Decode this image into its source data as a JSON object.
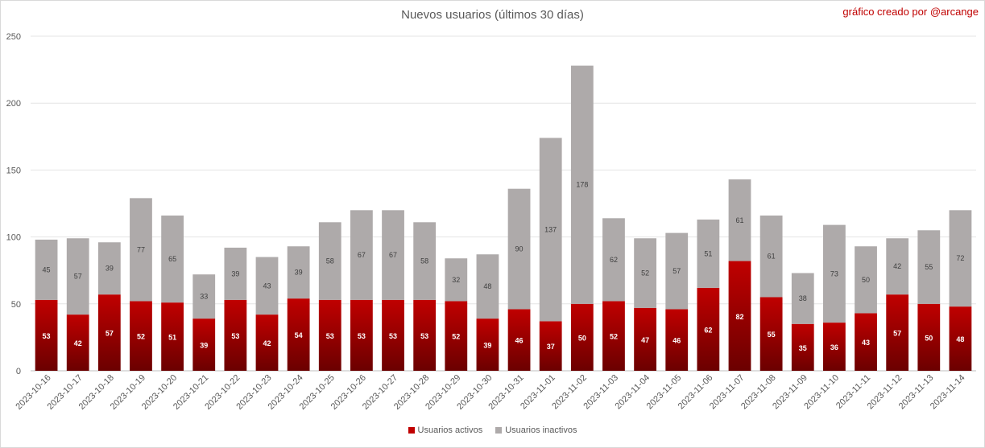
{
  "credit": "gráfico creado por @arcange",
  "colors": {
    "active": "#c00000",
    "active_dark": "#6b0000",
    "inactive": "#aeaaaa",
    "grid": "#e4e4e4",
    "axis_text": "#595959"
  },
  "chart_data": {
    "type": "bar",
    "stacked": true,
    "title": "Nuevos usuarios (últimos 30 días)",
    "xlabel": "",
    "ylabel": "",
    "ylim": [
      0,
      250
    ],
    "yticks": [
      0,
      50,
      100,
      150,
      200,
      250
    ],
    "grid": true,
    "legend_position": "bottom",
    "categories": [
      "2023-10-16",
      "2023-10-17",
      "2023-10-18",
      "2023-10-19",
      "2023-10-20",
      "2023-10-21",
      "2023-10-22",
      "2023-10-23",
      "2023-10-24",
      "2023-10-25",
      "2023-10-26",
      "2023-10-27",
      "2023-10-28",
      "2023-10-29",
      "2023-10-30",
      "2023-10-31",
      "2023-11-01",
      "2023-11-02",
      "2023-11-03",
      "2023-11-04",
      "2023-11-05",
      "2023-11-06",
      "2023-11-07",
      "2023-11-08",
      "2023-11-09",
      "2023-11-10",
      "2023-11-11",
      "2023-11-12",
      "2023-11-13",
      "2023-11-14"
    ],
    "series": [
      {
        "name": "Usuarios activos",
        "values": [
          53,
          42,
          57,
          52,
          51,
          39,
          53,
          42,
          54,
          53,
          53,
          53,
          53,
          52,
          39,
          46,
          37,
          50,
          52,
          47,
          46,
          62,
          82,
          55,
          35,
          36,
          43,
          57,
          50,
          48
        ]
      },
      {
        "name": "Usuarios inactivos",
        "values": [
          45,
          57,
          39,
          77,
          65,
          33,
          39,
          43,
          39,
          58,
          67,
          67,
          58,
          32,
          48,
          90,
          137,
          178,
          62,
          52,
          57,
          51,
          61,
          61,
          38,
          73,
          50,
          42,
          55,
          72
        ]
      }
    ]
  }
}
